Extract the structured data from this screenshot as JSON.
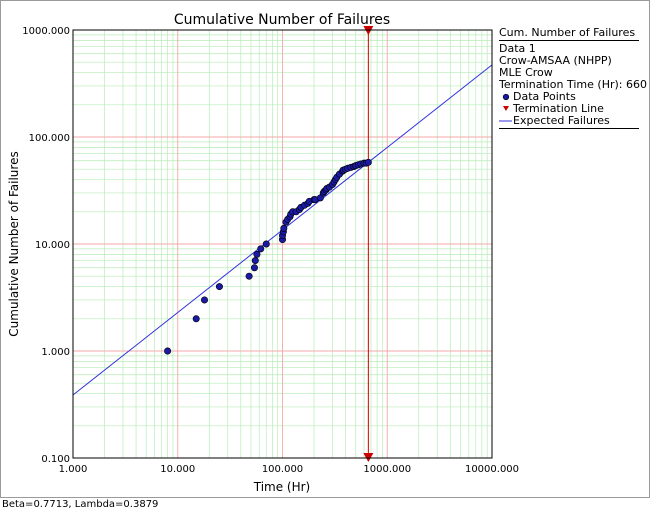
{
  "status": {
    "params": "Beta=0.7713, Lambda=0.3879"
  },
  "legend": {
    "heading": "Cum. Number of Failures",
    "dataset": "Data 1",
    "model": "Crow-AMSAA (NHPP)",
    "method": "MLE Crow",
    "termination": "Termination Time (Hr): 660",
    "items": [
      {
        "label": "Data Points",
        "icon": "dot-marker-icon"
      },
      {
        "label": "Termination Line",
        "icon": "triangle-marker-icon"
      },
      {
        "label": "Expected Failures",
        "icon": "line-icon"
      }
    ]
  },
  "colors": {
    "points": "#1a1aa6",
    "fit_line": "#3333dd",
    "termination": "#cc0000",
    "major_grid": "#f4a8a8",
    "minor_grid": "#b8ecb8"
  },
  "chart_data": {
    "type": "scatter",
    "title": "Cumulative Number of Failures",
    "xlabel": "Time (Hr)",
    "ylabel": "Cumulative Number of Failures",
    "x_scale": "log",
    "y_scale": "log",
    "xlim": [
      1,
      10000
    ],
    "ylim": [
      0.1,
      1000
    ],
    "x_ticks": [
      "1.000",
      "10.000",
      "100.000",
      "1000.000",
      "10000.000"
    ],
    "y_ticks": [
      "0.100",
      "1.000",
      "10.000",
      "100.000",
      "1000.000"
    ],
    "grid": true,
    "legend_position": "right",
    "series": [
      {
        "name": "Data Points",
        "type": "scatter",
        "points": [
          [
            8,
            1
          ],
          [
            15,
            2
          ],
          [
            18,
            3
          ],
          [
            25,
            4
          ],
          [
            48,
            5
          ],
          [
            54,
            6
          ],
          [
            55,
            7
          ],
          [
            57,
            8
          ],
          [
            62,
            9
          ],
          [
            70,
            10
          ],
          [
            100,
            11
          ],
          [
            100,
            12
          ],
          [
            102,
            13
          ],
          [
            103,
            14
          ],
          [
            108,
            16
          ],
          [
            112,
            17
          ],
          [
            118,
            18
          ],
          [
            120,
            19
          ],
          [
            125,
            20
          ],
          [
            135,
            20
          ],
          [
            145,
            21
          ],
          [
            150,
            22
          ],
          [
            162,
            23
          ],
          [
            175,
            24
          ],
          [
            180,
            25
          ],
          [
            200,
            26
          ],
          [
            205,
            26
          ],
          [
            230,
            27
          ],
          [
            245,
            30
          ],
          [
            250,
            31
          ],
          [
            260,
            32
          ],
          [
            265,
            33
          ],
          [
            280,
            34
          ],
          [
            300,
            36
          ],
          [
            310,
            38
          ],
          [
            320,
            40
          ],
          [
            330,
            42
          ],
          [
            350,
            45
          ],
          [
            375,
            48
          ],
          [
            380,
            49
          ],
          [
            400,
            50
          ],
          [
            420,
            51
          ],
          [
            450,
            52
          ],
          [
            480,
            53
          ],
          [
            500,
            54
          ],
          [
            530,
            55
          ],
          [
            560,
            56
          ],
          [
            600,
            57
          ],
          [
            630,
            57
          ],
          [
            660,
            58
          ]
        ]
      },
      {
        "name": "Expected Failures",
        "type": "line",
        "beta": 0.7713,
        "lambda": 0.3879,
        "x_range": [
          1,
          10000
        ]
      },
      {
        "name": "Termination Line",
        "type": "vline",
        "x": 660
      }
    ]
  }
}
